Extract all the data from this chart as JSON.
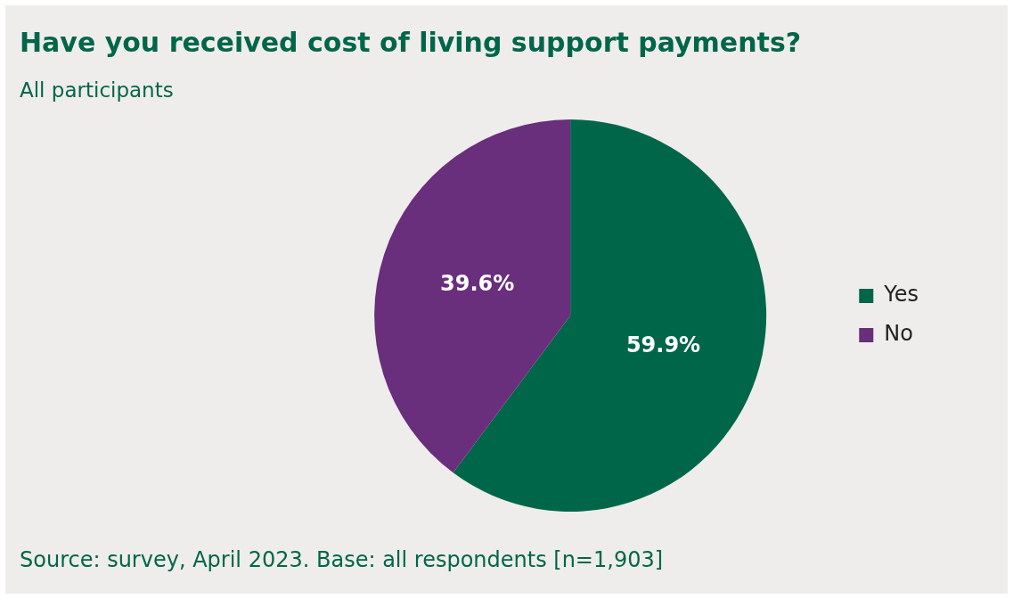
{
  "chart_data": {
    "type": "pie",
    "title": "Have you received cost of living support payments?",
    "subtitle": "All participants",
    "categories": [
      "Yes",
      "No"
    ],
    "values": [
      59.9,
      39.6
    ],
    "colors": [
      "#00664a",
      "#692e7c"
    ],
    "value_labels": [
      "59.9%",
      "39.6%"
    ],
    "legend": "right",
    "annotations": [
      "Source: survey, April 2023. Base: all respondents [n=1,903]"
    ]
  }
}
